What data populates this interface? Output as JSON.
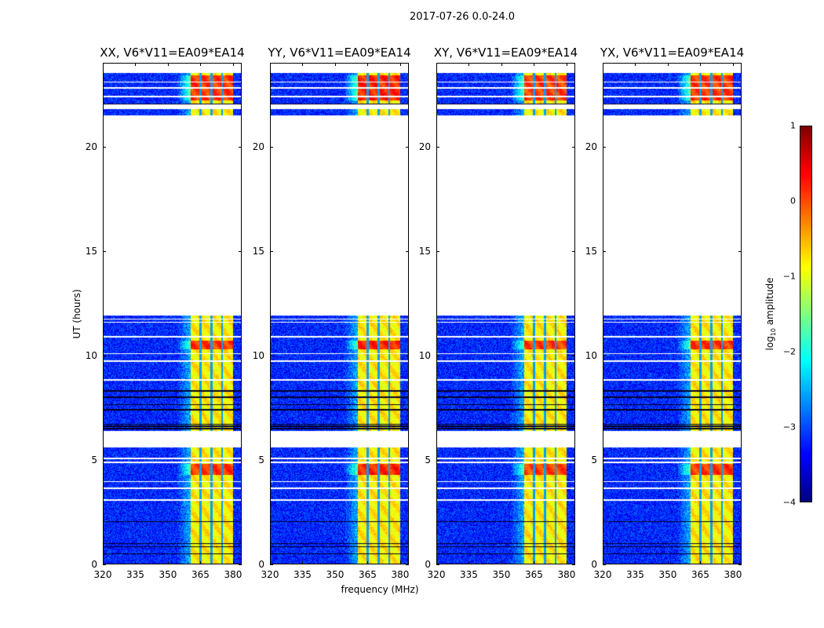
{
  "suptitle": "2017-07-26 0.0-24.0",
  "chart_data": {
    "type": "heatmap",
    "title": "2017-07-26 0.0-24.0",
    "xlabel": "frequency (MHz)",
    "ylabel": "UT (hours)",
    "xlim": [
      320,
      384
    ],
    "ylim": [
      0,
      24
    ],
    "xticks": [
      "320",
      "335",
      "350",
      "365",
      "380"
    ],
    "xtick_values": [
      320,
      335,
      350,
      365,
      380
    ],
    "yticks": [
      "0",
      "5",
      "10",
      "15",
      "20"
    ],
    "ytick_values": [
      0,
      5,
      10,
      15,
      20
    ],
    "panels": [
      {
        "title": "XX, V6*V11=EA09*EA14",
        "band_strength": 1.0
      },
      {
        "title": "YY, V6*V11=EA09*EA14",
        "band_strength": 1.1
      },
      {
        "title": "XY, V6*V11=EA09*EA14",
        "band_strength": 0.95
      },
      {
        "title": "YX, V6*V11=EA09*EA14",
        "band_strength": 1.0
      }
    ],
    "data_blocks_hours": [
      [
        0,
        5.6
      ],
      [
        6.4,
        11.9
      ],
      [
        21.5,
        23.5
      ]
    ],
    "flagged_gaps_hours": [
      [
        3.05,
        3.12
      ],
      [
        3.6,
        3.68
      ],
      [
        3.95,
        4.0
      ],
      [
        4.85,
        4.92
      ],
      [
        5.05,
        5.12
      ],
      [
        8.8,
        8.88
      ],
      [
        9.7,
        9.78
      ],
      [
        10.05,
        10.12
      ],
      [
        10.85,
        10.92
      ],
      [
        11.55,
        11.6
      ],
      [
        11.72,
        11.76
      ],
      [
        21.8,
        22.0
      ],
      [
        22.35,
        22.42
      ],
      [
        22.75,
        22.82
      ],
      [
        23.05,
        23.1
      ]
    ],
    "dark_rows_hours": [
      0.5,
      0.85,
      1.0,
      2.05,
      6.5,
      6.6,
      6.7,
      7.4,
      7.65,
      8.0,
      8.3,
      22.0
    ],
    "bright_band_mhz": [
      360.4,
      380
    ],
    "band_gaps_mhz": [
      365,
      370,
      375
    ],
    "background_log_amp": -3.2,
    "band_log_amp": -0.8,
    "peak_hours": [
      [
        10.3,
        10.7
      ],
      [
        4.3,
        4.8
      ],
      [
        22.2,
        23.4
      ]
    ],
    "colorbar": {
      "label_main": "log",
      "label_sub": "10",
      "label_rest": " amplitude",
      "range": [
        -4,
        1
      ],
      "ticks": [
        "1",
        "0",
        "−1",
        "−2",
        "−3",
        "−4"
      ],
      "tick_values": [
        1,
        0,
        -1,
        -2,
        -3,
        -4
      ],
      "colormap": "jet"
    }
  }
}
